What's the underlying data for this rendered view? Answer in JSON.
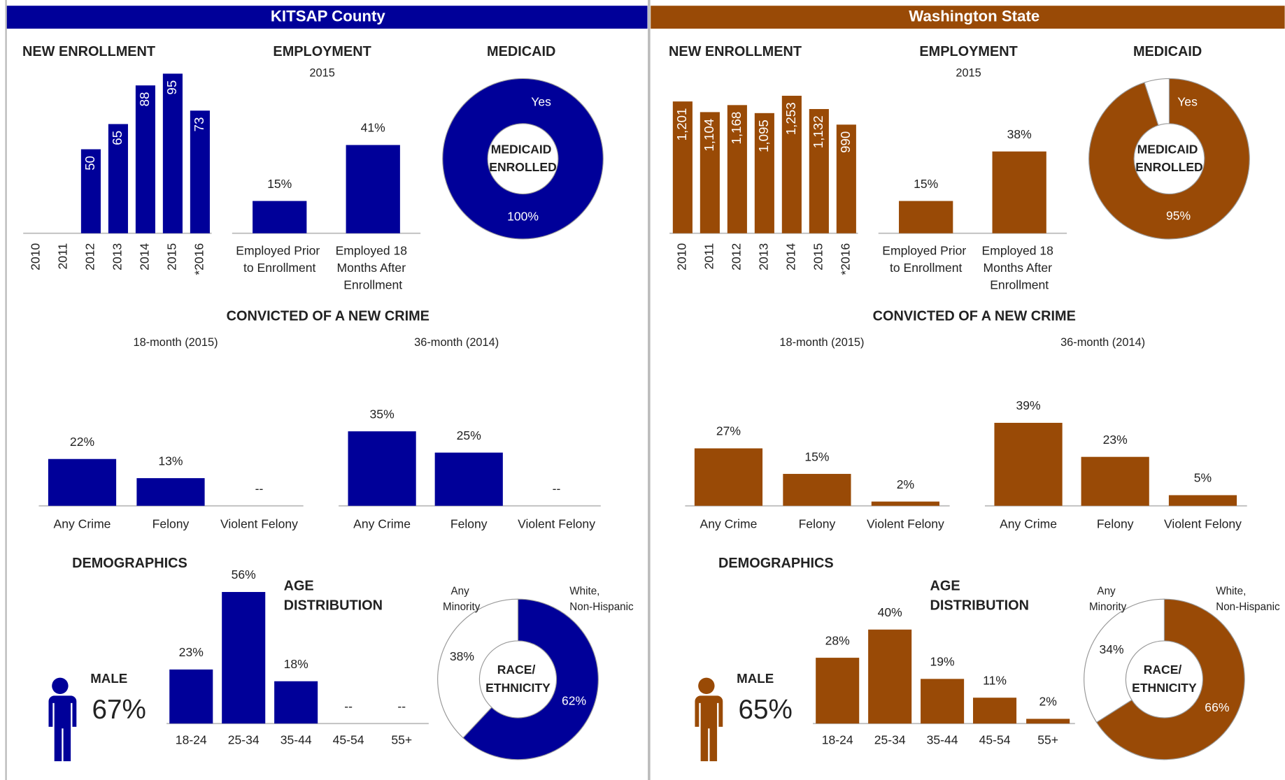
{
  "panels": [
    {
      "title": "KITSAP County",
      "color": "#000099",
      "chart_data": [
        {
          "type": "bar",
          "title": "NEW ENROLLMENT",
          "categories": [
            "2010",
            "2011",
            "2012",
            "2013",
            "2014",
            "2015",
            "*2016"
          ],
          "values": [
            null,
            null,
            50,
            65,
            88,
            95,
            73
          ]
        },
        {
          "type": "bar",
          "title": "EMPLOYMENT",
          "subtitle": "2015",
          "categories": [
            "Employed Prior to Enrollment",
            "Employed 18 Months After Enrollment"
          ],
          "values": [
            15,
            41
          ],
          "value_labels": [
            "15%",
            "41%"
          ]
        },
        {
          "type": "pie",
          "title": "MEDICAID",
          "center_label": "MEDICAID ENROLLED",
          "categories": [
            "Yes"
          ],
          "values": [
            100
          ],
          "value_labels": [
            "100%"
          ],
          "colors": [
            "#000099"
          ]
        },
        {
          "type": "bar",
          "title": "CONVICTED OF A NEW CRIME",
          "groups": [
            {
              "subtitle": "18-month (2015)",
              "categories": [
                "Any Crime",
                "Felony",
                "Violent Felony"
              ],
              "values": [
                22,
                13,
                null
              ],
              "value_labels": [
                "22%",
                "13%",
                "--"
              ]
            },
            {
              "subtitle": "36-month (2014)",
              "categories": [
                "Any Crime",
                "Felony",
                "Violent Felony"
              ],
              "values": [
                35,
                25,
                null
              ],
              "value_labels": [
                "35%",
                "25%",
                "--"
              ]
            }
          ]
        },
        {
          "type": "bar",
          "title": "AGE DISTRIBUTION",
          "categories": [
            "18-24",
            "25-34",
            "35-44",
            "45-54",
            "55+"
          ],
          "values": [
            23,
            56,
            18,
            null,
            null
          ],
          "value_labels": [
            "23%",
            "56%",
            "18%",
            "--",
            "--"
          ]
        },
        {
          "type": "pie",
          "center_label": "RACE/ ETHNICITY",
          "categories": [
            "White, Non-Hispanic",
            "Any Minority"
          ],
          "values": [
            62,
            38
          ],
          "value_labels": [
            "62%",
            "38%"
          ],
          "colors": [
            "#000099",
            "#ffffff"
          ]
        }
      ],
      "demographics": {
        "title": "DEMOGRAPHICS",
        "gender": "MALE",
        "share": "67%"
      }
    },
    {
      "title": "Washington State",
      "color": "#994a06",
      "chart_data": [
        {
          "type": "bar",
          "title": "NEW ENROLLMENT",
          "categories": [
            "2010",
            "2011",
            "2012",
            "2013",
            "2014",
            "2015",
            "*2016"
          ],
          "values": [
            1201,
            1104,
            1168,
            1095,
            1253,
            1132,
            990
          ],
          "value_labels": [
            "1,201",
            "1,104",
            "1,168",
            "1,095",
            "1,253",
            "1,132",
            "990"
          ]
        },
        {
          "type": "bar",
          "title": "EMPLOYMENT",
          "subtitle": "2015",
          "categories": [
            "Employed Prior to Enrollment",
            "Employed 18 Months After Enrollment"
          ],
          "values": [
            15,
            38
          ],
          "value_labels": [
            "15%",
            "38%"
          ]
        },
        {
          "type": "pie",
          "title": "MEDICAID",
          "center_label": "MEDICAID ENROLLED",
          "categories": [
            "Yes",
            null
          ],
          "values": [
            95,
            5
          ],
          "value_labels": [
            "95%",
            null
          ],
          "colors": [
            "#994a06",
            "#ffffff"
          ]
        },
        {
          "type": "bar",
          "title": "CONVICTED OF A NEW CRIME",
          "groups": [
            {
              "subtitle": "18-month (2015)",
              "categories": [
                "Any Crime",
                "Felony",
                "Violent Felony"
              ],
              "values": [
                27,
                15,
                2
              ],
              "value_labels": [
                "27%",
                "15%",
                "2%"
              ]
            },
            {
              "subtitle": "36-month (2014)",
              "categories": [
                "Any Crime",
                "Felony",
                "Violent Felony"
              ],
              "values": [
                39,
                23,
                5
              ],
              "value_labels": [
                "39%",
                "23%",
                "5%"
              ]
            }
          ]
        },
        {
          "type": "bar",
          "title": "AGE DISTRIBUTION",
          "categories": [
            "18-24",
            "25-34",
            "35-44",
            "45-54",
            "55+"
          ],
          "values": [
            28,
            40,
            19,
            11,
            2
          ],
          "value_labels": [
            "28%",
            "40%",
            "19%",
            "11%",
            "2%"
          ]
        },
        {
          "type": "pie",
          "center_label": "RACE/ ETHNICITY",
          "categories": [
            "White, Non-Hispanic",
            "Any Minority"
          ],
          "values": [
            66,
            34
          ],
          "value_labels": [
            "66%",
            "34%"
          ],
          "colors": [
            "#994a06",
            "#ffffff"
          ]
        }
      ],
      "demographics": {
        "title": "DEMOGRAPHICS",
        "gender": "MALE",
        "share": "65%"
      }
    }
  ]
}
